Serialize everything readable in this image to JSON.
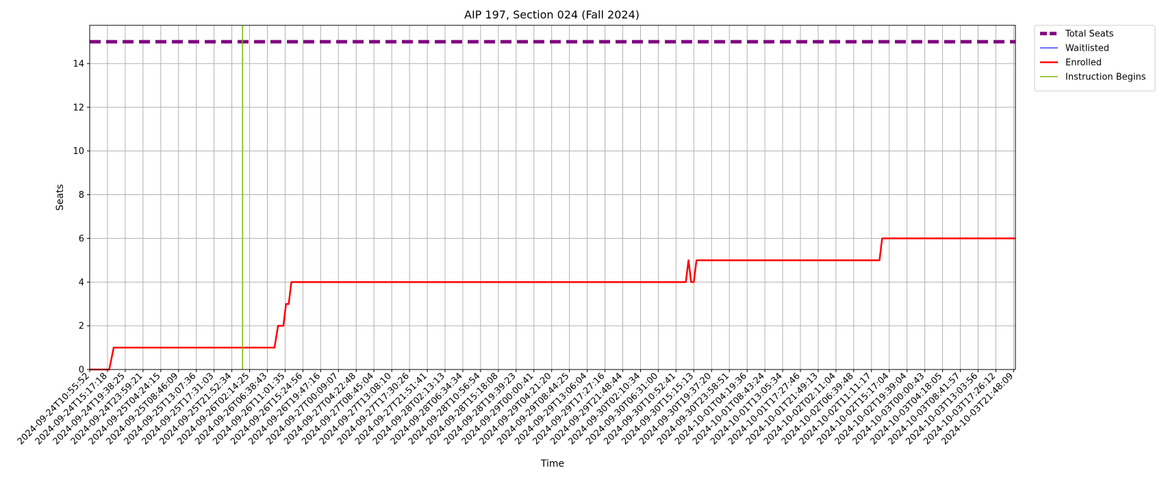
{
  "chart_data": {
    "type": "line",
    "title": "AIP 197, Section 024 (Fall 2024)",
    "xlabel": "Time",
    "ylabel": "Seats",
    "ylim": [
      0,
      15.75
    ],
    "yticks": [
      0,
      2,
      4,
      6,
      8,
      10,
      12,
      14
    ],
    "grid": true,
    "legend_position": "outside-top-right",
    "x_tick_labels": [
      "2024-09-24T10:55:52",
      "2024-09-24T15:17:18",
      "2024-09-24T19:38:25",
      "2024-09-24T23:59:21",
      "2024-09-25T04:24:15",
      "2024-09-25T08:46:09",
      "2024-09-25T13:07:36",
      "2024-09-25T17:31:03",
      "2024-09-25T21:52:34",
      "2024-09-26T02:14:25",
      "2024-09-26T06:38:43",
      "2024-09-26T11:01:35",
      "2024-09-26T15:24:56",
      "2024-09-26T19:47:16",
      "2024-09-27T00:09:07",
      "2024-09-27T04:22:48",
      "2024-09-27T08:45:04",
      "2024-09-27T13:08:10",
      "2024-09-27T17:30:26",
      "2024-09-27T21:51:41",
      "2024-09-28T02:13:13",
      "2024-09-28T06:34:34",
      "2024-09-28T10:56:54",
      "2024-09-28T15:18:08",
      "2024-09-28T19:39:23",
      "2024-09-29T00:00:41",
      "2024-09-29T04:21:20",
      "2024-09-29T08:44:25",
      "2024-09-29T13:06:04",
      "2024-09-29T17:27:16",
      "2024-09-29T21:48:44",
      "2024-09-30T02:10:34",
      "2024-09-30T06:31:00",
      "2024-09-30T10:52:41",
      "2024-09-30T15:15:13",
      "2024-09-30T19:37:20",
      "2024-09-30T23:58:51",
      "2024-10-01T04:19:36",
      "2024-10-01T08:43:24",
      "2024-10-01T13:05:34",
      "2024-10-01T17:27:46",
      "2024-10-01T21:49:13",
      "2024-10-02T02:11:04",
      "2024-10-02T06:39:48",
      "2024-10-02T11:11:17",
      "2024-10-02T15:17:04",
      "2024-10-02T19:39:04",
      "2024-10-03T00:00:43",
      "2024-10-03T04:18:05",
      "2024-10-03T08:41:57",
      "2024-10-03T13:03:56",
      "2024-10-03T17:26:12",
      "2024-10-03T21:48:09"
    ],
    "x_range": [
      0,
      52.1
    ],
    "series": [
      {
        "name": "Total Seats",
        "color": "#800080",
        "style": "dashed",
        "points": [
          [
            0,
            15
          ],
          [
            52.1,
            15
          ]
        ]
      },
      {
        "name": "Waitlisted",
        "color": "#3b3bff",
        "style": "solid",
        "points": []
      },
      {
        "name": "Enrolled",
        "color": "#ff0000",
        "style": "solid",
        "points": [
          [
            0,
            0
          ],
          [
            1.1,
            0
          ],
          [
            1.35,
            1
          ],
          [
            10.4,
            1
          ],
          [
            10.6,
            2
          ],
          [
            10.9,
            2
          ],
          [
            11.05,
            3
          ],
          [
            11.2,
            3
          ],
          [
            11.35,
            4
          ],
          [
            33.55,
            4
          ],
          [
            33.7,
            5
          ],
          [
            33.85,
            4
          ],
          [
            34.0,
            4
          ],
          [
            34.15,
            5
          ],
          [
            44.45,
            5
          ],
          [
            44.6,
            6
          ],
          [
            52.1,
            6
          ]
        ]
      },
      {
        "name": "Instruction Begins",
        "color": "#7fb800",
        "style": "vertical",
        "x": 8.6
      }
    ]
  }
}
